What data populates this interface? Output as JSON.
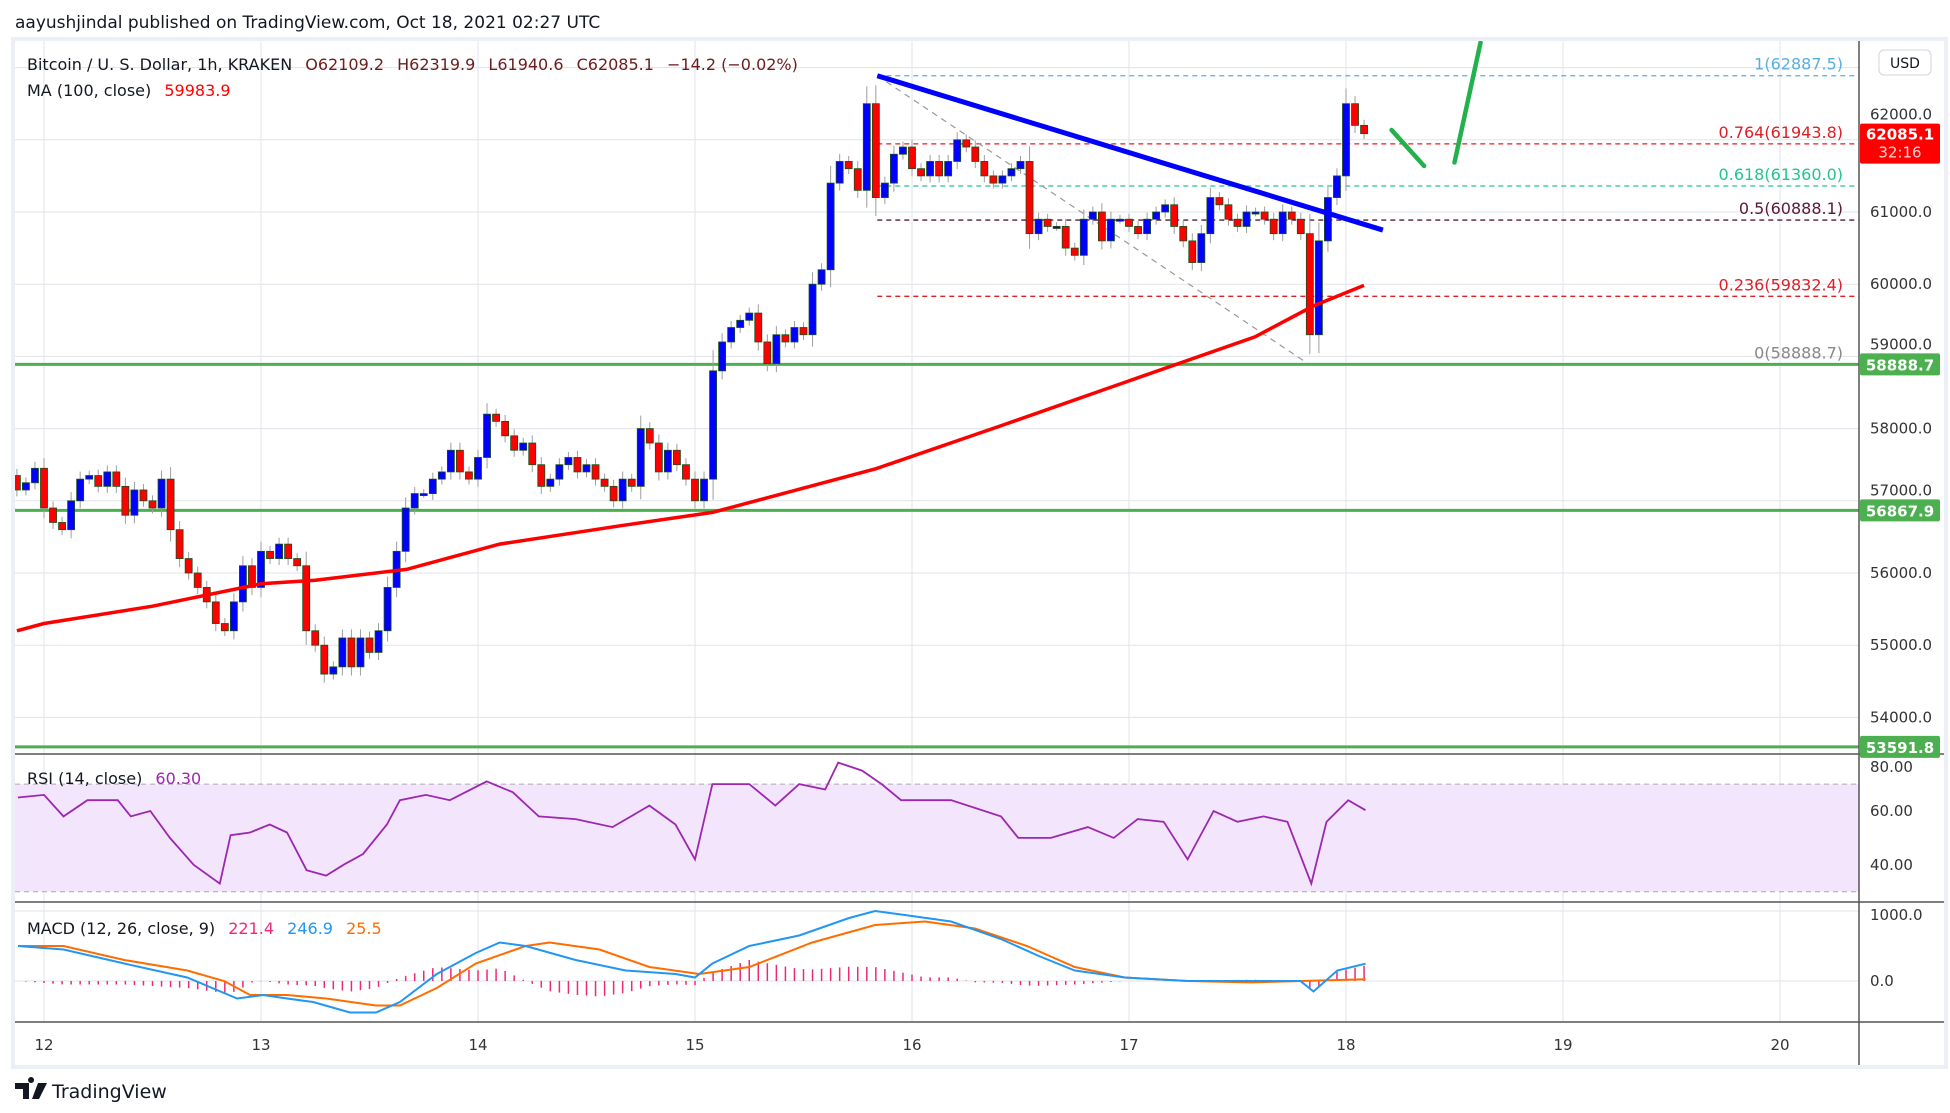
{
  "header": {
    "published": "aayushjindal published on TradingView.com, Oct 18, 2021 02:27 UTC"
  },
  "legend": {
    "symbol": "Bitcoin / U. S. Dollar, 1h, KRAKEN",
    "open": "O62109.2",
    "high": "H62319.9",
    "low": "L61940.6",
    "close": "C62085.1",
    "change": "−14.2 (−0.02%)",
    "ma_label": "MA (100, close)",
    "ma_value": "59983.9"
  },
  "rsi": {
    "label": "RSI (14, close)",
    "value": "60.30",
    "ticks": [
      "80.00",
      "60.00",
      "40.00"
    ]
  },
  "macd": {
    "label": "MACD (12, 26, close, 9)",
    "hist": "221.4",
    "macd": "246.9",
    "signal": "25.5",
    "ticks": [
      "1000.0",
      "0.0"
    ]
  },
  "price_axis": {
    "currency": "USD",
    "ticks": [
      "62000.0",
      "61000.0",
      "60000.0",
      "59000.0",
      "58000.0",
      "57000.0",
      "56000.0",
      "55000.0",
      "54000.0"
    ],
    "last_price": "62085.1",
    "countdown": "32:16"
  },
  "time_axis": {
    "ticks": [
      "12",
      "13",
      "14",
      "15",
      "16",
      "17",
      "18",
      "19",
      "20"
    ]
  },
  "footer": {
    "brand": "TradingView"
  },
  "colors": {
    "up": "#0000ff",
    "down": "#ff0000",
    "ma": "#ff0000",
    "trendline": "#0000ff",
    "support": "#4caf50",
    "arrow": "#22b14c",
    "rsi": "#9c27b0",
    "macd": "#2196f3",
    "signal": "#ff6d00",
    "histogram": "#f0287a"
  },
  "chart_data": {
    "type": "candlestick",
    "interval": "1h",
    "xlabel": "",
    "ylabel": "",
    "x_unit": "day of Oct 2021",
    "xlim": [
      11.85,
      20.37
    ],
    "ylim": [
      53400,
      63370
    ],
    "grid": true,
    "start_day": 11.875,
    "first_open": 57350,
    "closes": [
      57150,
      57250,
      57450,
      56900,
      56700,
      56600,
      57000,
      57300,
      57350,
      57200,
      57400,
      57200,
      56800,
      57150,
      57000,
      56900,
      57300,
      56600,
      56200,
      56000,
      55800,
      55600,
      55300,
      55200,
      55600,
      56100,
      55800,
      56300,
      56200,
      56400,
      56200,
      56100,
      55200,
      55000,
      54600,
      54700,
      55100,
      54700,
      55100,
      54900,
      55200,
      55800,
      56300,
      56900,
      57100,
      57100,
      57300,
      57400,
      57700,
      57400,
      57300,
      57600,
      58200,
      58100,
      57900,
      57700,
      57800,
      57500,
      57200,
      57300,
      57500,
      57600,
      57400,
      57500,
      57300,
      57200,
      57000,
      57300,
      57200,
      58000,
      57800,
      57400,
      57700,
      57500,
      57300,
      57000,
      57300,
      58800,
      59200,
      59400,
      59500,
      59600,
      59200,
      58900,
      59300,
      59200,
      59400,
      59300,
      60000,
      60200,
      61400,
      61700,
      61600,
      61300,
      62500,
      61200,
      61400,
      61800,
      61900,
      61600,
      61500,
      61700,
      61500,
      61700,
      62000,
      61900,
      61700,
      61500,
      61400,
      61500,
      61600,
      61700,
      60700,
      60900,
      60800,
      60800,
      60500,
      60400,
      60900,
      61000,
      60600,
      60900,
      60900,
      60800,
      60700,
      60900,
      61000,
      61100,
      60800,
      60600,
      60300,
      60700,
      61200,
      61100,
      60900,
      60800,
      61000,
      61000,
      60900,
      60700,
      61000,
      60900,
      60700,
      59300,
      60600,
      61200,
      61500,
      62500,
      62200,
      62085.1
    ],
    "ma100": [
      [
        11.875,
        55200
      ],
      [
        12.0,
        55300
      ],
      [
        12.5,
        55540
      ],
      [
        13.0,
        55850
      ],
      [
        13.25,
        55900
      ],
      [
        13.67,
        56050
      ],
      [
        14.1,
        56400
      ],
      [
        14.67,
        56660
      ],
      [
        15.08,
        56840
      ],
      [
        15.83,
        57440
      ],
      [
        16.42,
        58050
      ],
      [
        17.0,
        58660
      ],
      [
        17.58,
        59270
      ],
      [
        17.85,
        59700
      ],
      [
        18.083,
        59983.9
      ]
    ],
    "support_levels": [
      {
        "value": 58888.7,
        "label": "58888.7"
      },
      {
        "value": 56867.9,
        "label": "56867.9"
      },
      {
        "value": 53591.8,
        "label": "53591.8"
      }
    ],
    "fib_start_day": 15.84,
    "fib_levels": [
      {
        "value": 62887.5,
        "label": "1(62887.5)",
        "color": "#5aaee0"
      },
      {
        "value": 61943.8,
        "label": "0.764(61943.8)",
        "color": "#e01e25"
      },
      {
        "value": 61360.0,
        "label": "0.618(61360.0)",
        "color": "#23c48e"
      },
      {
        "value": 60888.1,
        "label": "0.5(60888.1)",
        "color": "#5a1838"
      },
      {
        "value": 59832.4,
        "label": "0.236(59832.4)",
        "color": "#e01e25"
      },
      {
        "value": 58888.7,
        "label": "0(58888.7)",
        "color": "#888888"
      }
    ],
    "fib_diagonal": [
      [
        15.84,
        62887.5
      ],
      [
        17.83,
        58888.7
      ]
    ],
    "trendline": [
      [
        15.84,
        62887.5
      ],
      [
        18.17,
        60750
      ]
    ],
    "arrow_drawing": [
      [
        [
          18.21,
          62136
        ],
        [
          18.36,
          61637
        ]
      ],
      [
        [
          18.5,
          61686
        ],
        [
          18.62,
          63348
        ]
      ]
    ],
    "rsi_series": [
      [
        11.88,
        65
      ],
      [
        12.0,
        66
      ],
      [
        12.09,
        58
      ],
      [
        12.2,
        64
      ],
      [
        12.34,
        64
      ],
      [
        12.4,
        58
      ],
      [
        12.49,
        60
      ],
      [
        12.58,
        50
      ],
      [
        12.69,
        40
      ],
      [
        12.81,
        33
      ],
      [
        12.86,
        51
      ],
      [
        12.95,
        52
      ],
      [
        13.04,
        55
      ],
      [
        13.12,
        52
      ],
      [
        13.21,
        38
      ],
      [
        13.3,
        36
      ],
      [
        13.38,
        40
      ],
      [
        13.47,
        44
      ],
      [
        13.58,
        55
      ],
      [
        13.64,
        64
      ],
      [
        13.76,
        66
      ],
      [
        13.87,
        64
      ],
      [
        14.04,
        71
      ],
      [
        14.16,
        67
      ],
      [
        14.28,
        58
      ],
      [
        14.45,
        57
      ],
      [
        14.62,
        54
      ],
      [
        14.79,
        62
      ],
      [
        14.91,
        55
      ],
      [
        15.0,
        42
      ],
      [
        15.08,
        70
      ],
      [
        15.25,
        70
      ],
      [
        15.37,
        62
      ],
      [
        15.48,
        70
      ],
      [
        15.6,
        68
      ],
      [
        15.66,
        78
      ],
      [
        15.77,
        75
      ],
      [
        15.86,
        70
      ],
      [
        15.95,
        64
      ],
      [
        16.18,
        64
      ],
      [
        16.41,
        58
      ],
      [
        16.49,
        50
      ],
      [
        16.64,
        50
      ],
      [
        16.81,
        54
      ],
      [
        16.93,
        50
      ],
      [
        17.04,
        57
      ],
      [
        17.16,
        56
      ],
      [
        17.27,
        42
      ],
      [
        17.39,
        60
      ],
      [
        17.5,
        56
      ],
      [
        17.62,
        58
      ],
      [
        17.73,
        56
      ],
      [
        17.84,
        33
      ],
      [
        17.91,
        56
      ],
      [
        18.01,
        64
      ],
      [
        18.09,
        60.3
      ]
    ],
    "rsi_bands": [
      70,
      30
    ],
    "macd_series": [
      [
        11.88,
        500
      ],
      [
        12.09,
        450
      ],
      [
        12.37,
        250
      ],
      [
        12.66,
        50
      ],
      [
        12.89,
        -250
      ],
      [
        13.01,
        -200
      ],
      [
        13.12,
        -250
      ],
      [
        13.24,
        -300
      ],
      [
        13.41,
        -450
      ],
      [
        13.53,
        -450
      ],
      [
        13.64,
        -300
      ],
      [
        13.81,
        100
      ],
      [
        13.99,
        400
      ],
      [
        14.1,
        550
      ],
      [
        14.22,
        500
      ],
      [
        14.45,
        300
      ],
      [
        14.68,
        150
      ],
      [
        14.91,
        100
      ],
      [
        15.0,
        50
      ],
      [
        15.08,
        250
      ],
      [
        15.25,
        500
      ],
      [
        15.48,
        650
      ],
      [
        15.71,
        900
      ],
      [
        15.83,
        1000
      ],
      [
        15.95,
        950
      ],
      [
        16.18,
        850
      ],
      [
        16.41,
        600
      ],
      [
        16.59,
        350
      ],
      [
        16.75,
        150
      ],
      [
        16.98,
        50
      ],
      [
        17.27,
        0
      ],
      [
        17.5,
        0
      ],
      [
        17.79,
        0
      ],
      [
        17.85,
        -150
      ],
      [
        17.96,
        150
      ],
      [
        18.09,
        246.9
      ]
    ],
    "signal_series": [
      [
        11.88,
        500
      ],
      [
        12.09,
        500
      ],
      [
        12.37,
        300
      ],
      [
        12.66,
        150
      ],
      [
        12.83,
        0
      ],
      [
        12.95,
        -200
      ],
      [
        13.12,
        -200
      ],
      [
        13.3,
        -250
      ],
      [
        13.53,
        -350
      ],
      [
        13.64,
        -350
      ],
      [
        13.81,
        -100
      ],
      [
        13.99,
        250
      ],
      [
        14.22,
        500
      ],
      [
        14.33,
        550
      ],
      [
        14.56,
        450
      ],
      [
        14.79,
        200
      ],
      [
        15.02,
        100
      ],
      [
        15.25,
        200
      ],
      [
        15.54,
        550
      ],
      [
        15.83,
        800
      ],
      [
        16.06,
        850
      ],
      [
        16.29,
        750
      ],
      [
        16.53,
        500
      ],
      [
        16.75,
        200
      ],
      [
        16.98,
        50
      ],
      [
        17.27,
        0
      ],
      [
        17.56,
        -20
      ],
      [
        18.09,
        25.5
      ]
    ]
  }
}
